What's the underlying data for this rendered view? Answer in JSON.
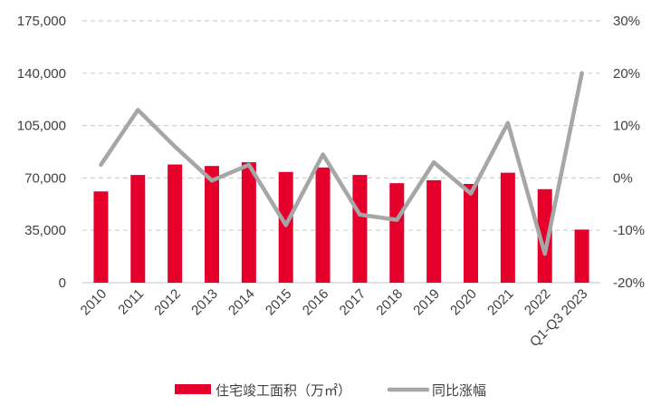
{
  "chart_data": {
    "type": "bar+line",
    "categories": [
      "2010",
      "2011",
      "2012",
      "2013",
      "2014",
      "2015",
      "2016",
      "2017",
      "2018",
      "2019",
      "2020",
      "2021",
      "2022",
      "Q1-Q3 2023"
    ],
    "series": [
      {
        "name": "住宅竣工面积（万㎡）",
        "type": "bar",
        "axis": "left",
        "values": [
          61000,
          72000,
          79000,
          78000,
          80500,
          74000,
          77000,
          72000,
          66500,
          68500,
          66000,
          73500,
          62500,
          35500
        ]
      },
      {
        "name": "同比涨幅",
        "type": "line",
        "axis": "right",
        "unit": "%",
        "values": [
          2.5,
          13.0,
          6.0,
          -0.5,
          2.5,
          -9.0,
          4.5,
          -7.0,
          -8.0,
          3.0,
          -3.0,
          10.5,
          -14.5,
          20.0
        ]
      }
    ],
    "y_left": {
      "min": 0,
      "max": 175000,
      "ticks": [
        "0",
        "35,000",
        "70,000",
        "105,000",
        "140,000",
        "175,000"
      ]
    },
    "y_right": {
      "min": -20,
      "max": 30,
      "ticks": [
        "-20%",
        "-10%",
        "0%",
        "10%",
        "20%",
        "30%"
      ]
    },
    "grid": true,
    "gridStyle": "dashed",
    "legend_position": "bottom",
    "colors": {
      "bar": "#e4002b",
      "line": "#a6a6a6",
      "grid": "#d0d0d0",
      "text": "#404040"
    }
  }
}
